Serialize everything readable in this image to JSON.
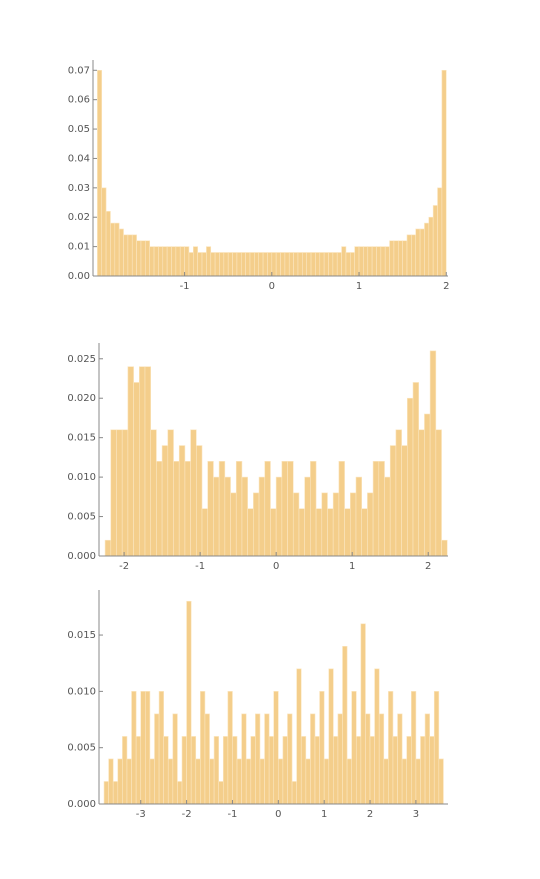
{
  "chart_data": [
    {
      "type": "histogram",
      "color": "#f3c97e",
      "bins": [
        -2,
        -1.95,
        -1.9,
        -1.85,
        -1.8,
        -1.75,
        -1.7,
        -1.65,
        -1.6,
        -1.55,
        -1.5,
        -1.45,
        -1.4,
        -1.35,
        -1.3,
        -1.25,
        -1.2,
        -1.15,
        -1.1,
        -1.05,
        -1,
        -0.95,
        -0.9,
        -0.85,
        -0.8,
        -0.75,
        -0.7,
        -0.65,
        -0.6,
        -0.55,
        -0.5,
        -0.45,
        -0.4,
        -0.35,
        -0.3,
        -0.25,
        -0.2,
        -0.15,
        -0.1,
        -0.05,
        0,
        0.05,
        0.1,
        0.15,
        0.2,
        0.25,
        0.3,
        0.35,
        0.4,
        0.45,
        0.5,
        0.55,
        0.6,
        0.65,
        0.7,
        0.75,
        0.8,
        0.85,
        0.9,
        0.95,
        1,
        1.05,
        1.1,
        1.15,
        1.2,
        1.25,
        1.3,
        1.35,
        1.4,
        1.45,
        1.5,
        1.55,
        1.6,
        1.65,
        1.7,
        1.75,
        1.8,
        1.85,
        1.9,
        1.95,
        2
      ],
      "values": [
        0.07,
        0.03,
        0.022,
        0.018,
        0.018,
        0.016,
        0.014,
        0.014,
        0.014,
        0.012,
        0.012,
        0.012,
        0.01,
        0.01,
        0.01,
        0.01,
        0.01,
        0.01,
        0.01,
        0.01,
        0.01,
        0.008,
        0.01,
        0.008,
        0.008,
        0.01,
        0.008,
        0.008,
        0.008,
        0.008,
        0.008,
        0.008,
        0.008,
        0.008,
        0.008,
        0.008,
        0.008,
        0.008,
        0.008,
        0.008,
        0.008,
        0.008,
        0.008,
        0.008,
        0.008,
        0.008,
        0.008,
        0.008,
        0.008,
        0.008,
        0.008,
        0.008,
        0.008,
        0.008,
        0.008,
        0.008,
        0.01,
        0.008,
        0.008,
        0.01,
        0.01,
        0.01,
        0.01,
        0.01,
        0.01,
        0.01,
        0.01,
        0.012,
        0.012,
        0.012,
        0.012,
        0.014,
        0.014,
        0.016,
        0.016,
        0.018,
        0.02,
        0.024,
        0.03,
        0.07
      ],
      "xlim": [
        -2.05,
        2.02
      ],
      "ylim": [
        0,
        0.0735
      ],
      "xticks": [
        -1,
        0,
        1,
        2
      ],
      "yticks": [
        {
          "value": 0,
          "label": "0.00"
        },
        {
          "value": 0.01,
          "label": "0.01"
        },
        {
          "value": 0.02,
          "label": "0.02"
        },
        {
          "value": 0.03,
          "label": "0.03"
        },
        {
          "value": 0.04,
          "label": "0.04"
        },
        {
          "value": 0.05,
          "label": "0.05"
        },
        {
          "value": 0.06,
          "label": "0.06"
        },
        {
          "value": 0.07,
          "label": "0.07"
        }
      ]
    },
    {
      "type": "histogram",
      "color": "#f3c97e",
      "bins": [
        -2.25,
        -2.175,
        -2.1,
        -2.025,
        -1.95,
        -1.875,
        -1.8,
        -1.725,
        -1.65,
        -1.575,
        -1.5,
        -1.425,
        -1.35,
        -1.275,
        -1.2,
        -1.125,
        -1.05,
        -0.975,
        -0.9,
        -0.825,
        -0.75,
        -0.675,
        -0.6,
        -0.525,
        -0.45,
        -0.375,
        -0.3,
        -0.225,
        -0.15,
        -0.075,
        0,
        0.075,
        0.15,
        0.225,
        0.3,
        0.375,
        0.45,
        0.525,
        0.6,
        0.675,
        0.75,
        0.825,
        0.9,
        0.975,
        1.05,
        1.125,
        1.2,
        1.275,
        1.35,
        1.425,
        1.5,
        1.575,
        1.65,
        1.725,
        1.8,
        1.875,
        1.95,
        2.025,
        2.1,
        2.175,
        2.25
      ],
      "values": [
        0.002,
        0.016,
        0.016,
        0.016,
        0.024,
        0.022,
        0.024,
        0.024,
        0.016,
        0.012,
        0.014,
        0.016,
        0.012,
        0.014,
        0.012,
        0.016,
        0.014,
        0.006,
        0.012,
        0.01,
        0.012,
        0.01,
        0.008,
        0.012,
        0.01,
        0.006,
        0.008,
        0.01,
        0.012,
        0.006,
        0.01,
        0.012,
        0.012,
        0.008,
        0.006,
        0.01,
        0.012,
        0.006,
        0.008,
        0.006,
        0.008,
        0.012,
        0.006,
        0.008,
        0.01,
        0.006,
        0.008,
        0.012,
        0.012,
        0.01,
        0.014,
        0.016,
        0.014,
        0.02,
        0.022,
        0.016,
        0.018,
        0.026,
        0.016,
        0.002
      ],
      "xlim": [
        -2.33,
        2.26
      ],
      "ylim": [
        0,
        0.027
      ],
      "xticks": [
        -2,
        -1,
        0,
        1,
        2
      ],
      "yticks": [
        {
          "value": 0,
          "label": "0.000"
        },
        {
          "value": 0.005,
          "label": "0.005"
        },
        {
          "value": 0.01,
          "label": "0.010"
        },
        {
          "value": 0.015,
          "label": "0.015"
        },
        {
          "value": 0.02,
          "label": "0.020"
        },
        {
          "value": 0.025,
          "label": "0.025"
        }
      ]
    },
    {
      "type": "histogram",
      "color": "#f3c97e",
      "bins": [
        -3.8,
        -3.7,
        -3.6,
        -3.5,
        -3.4,
        -3.3,
        -3.2,
        -3.1,
        -3,
        -2.9,
        -2.8,
        -2.7,
        -2.6,
        -2.5,
        -2.4,
        -2.3,
        -2.2,
        -2.1,
        -2,
        -1.9,
        -1.8,
        -1.7,
        -1.6,
        -1.5,
        -1.4,
        -1.3,
        -1.2,
        -1.1,
        -1,
        -0.9,
        -0.8,
        -0.7,
        -0.6,
        -0.5,
        -0.4,
        -0.3,
        -0.2,
        -0.1,
        0,
        0.1,
        0.2,
        0.3,
        0.4,
        0.5,
        0.6,
        0.7,
        0.8,
        0.9,
        1,
        1.1,
        1.2,
        1.3,
        1.4,
        1.5,
        1.6,
        1.7,
        1.8,
        1.9,
        2,
        2.1,
        2.2,
        2.3,
        2.4,
        2.5,
        2.6,
        2.7,
        2.8,
        2.9,
        3,
        3.1,
        3.2,
        3.3,
        3.4,
        3.5,
        3.6
      ],
      "values": [
        0.002,
        0.004,
        0.002,
        0.004,
        0.006,
        0.004,
        0.01,
        0.006,
        0.01,
        0.01,
        0.004,
        0.008,
        0.01,
        0.006,
        0.004,
        0.008,
        0.002,
        0.006,
        0.018,
        0.006,
        0.004,
        0.01,
        0.008,
        0.004,
        0.006,
        0.002,
        0.006,
        0.01,
        0.006,
        0.004,
        0.008,
        0.004,
        0.006,
        0.008,
        0.004,
        0.008,
        0.006,
        0.01,
        0.004,
        0.006,
        0.008,
        0.002,
        0.012,
        0.006,
        0.004,
        0.008,
        0.006,
        0.01,
        0.004,
        0.012,
        0.006,
        0.008,
        0.014,
        0.004,
        0.01,
        0.006,
        0.016,
        0.008,
        0.006,
        0.012,
        0.008,
        0.004,
        0.01,
        0.006,
        0.008,
        0.004,
        0.006,
        0.01,
        0.004,
        0.006,
        0.008,
        0.006,
        0.01,
        0.004
      ],
      "xlim": [
        -3.91,
        3.7
      ],
      "ylim": [
        0,
        0.019
      ],
      "xticks": [
        -3,
        -2,
        -1,
        0,
        1,
        2,
        3
      ],
      "yticks": [
        {
          "value": 0,
          "label": "0.000"
        },
        {
          "value": 0.005,
          "label": "0.005"
        },
        {
          "value": 0.01,
          "label": "0.010"
        },
        {
          "value": 0.015,
          "label": "0.015"
        }
      ]
    }
  ]
}
